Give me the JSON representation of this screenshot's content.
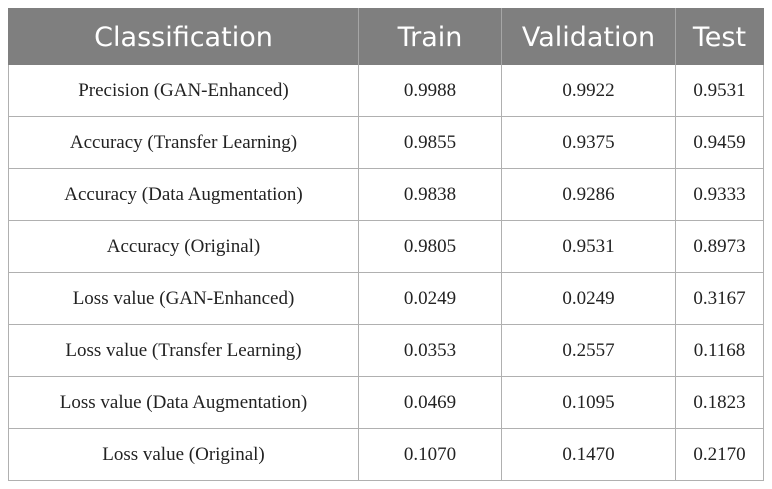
{
  "table": {
    "headers": [
      "Classification",
      "Train",
      "Validation",
      "Test"
    ],
    "rows": [
      [
        "Precision (GAN-Enhanced)",
        "0.9988",
        "0.9922",
        "0.9531"
      ],
      [
        "Accuracy (Transfer Learning)",
        "0.9855",
        "0.9375",
        "0.9459"
      ],
      [
        "Accuracy (Data Augmentation)",
        "0.9838",
        "0.9286",
        "0.9333"
      ],
      [
        "Accuracy (Original)",
        "0.9805",
        "0.9531",
        "0.8973"
      ],
      [
        "Loss value (GAN-Enhanced)",
        "0.0249",
        "0.0249",
        "0.3167"
      ],
      [
        "Loss value (Transfer Learning)",
        "0.0353",
        "0.2557",
        "0.1168"
      ],
      [
        "Loss value (Data Augmentation)",
        "0.0469",
        "0.1095",
        "0.1823"
      ],
      [
        "Loss value (Original)",
        "0.1070",
        "0.1470",
        "0.2170"
      ]
    ]
  },
  "colors": {
    "header_background": "#7f7f7f",
    "header_text": "#ffffff",
    "grid_lines": "#b0b0b0"
  }
}
